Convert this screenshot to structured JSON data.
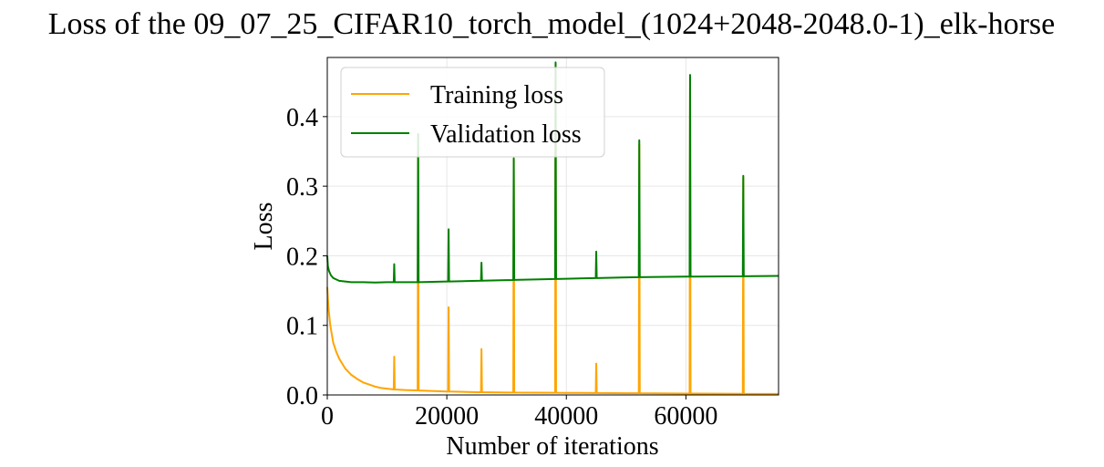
{
  "chart_data": {
    "type": "line",
    "title": "Loss of the 09_07_25_CIFAR10_torch_model_(1024+2048-2048.0-1)_elk-horse",
    "xlabel": "Number of iterations",
    "ylabel": "Loss",
    "xlim": [
      0,
      75500
    ],
    "ylim": [
      0,
      0.485
    ],
    "x_ticks": [
      0,
      20000,
      40000,
      60000
    ],
    "y_ticks": [
      0.0,
      0.1,
      0.2,
      0.3,
      0.4
    ],
    "x_tick_labels": [
      "0",
      "20000",
      "40000",
      "60000"
    ],
    "y_tick_labels": [
      "0.0",
      "0.1",
      "0.2",
      "0.3",
      "0.4"
    ],
    "grid": true,
    "legend_position": "upper-left",
    "series": [
      {
        "name": "Training loss",
        "color": "#FFA500",
        "baseline": [
          [
            0,
            0.155
          ],
          [
            200,
            0.125
          ],
          [
            500,
            0.1
          ],
          [
            1000,
            0.075
          ],
          [
            1500,
            0.062
          ],
          [
            2000,
            0.052
          ],
          [
            3000,
            0.038
          ],
          [
            4000,
            0.029
          ],
          [
            5000,
            0.023
          ],
          [
            6000,
            0.018
          ],
          [
            7000,
            0.015
          ],
          [
            8000,
            0.012
          ],
          [
            9000,
            0.01
          ],
          [
            10000,
            0.009
          ],
          [
            11000,
            0.008
          ],
          [
            13000,
            0.007
          ],
          [
            15000,
            0.0065
          ],
          [
            20000,
            0.005
          ],
          [
            25000,
            0.004
          ],
          [
            30000,
            0.0035
          ],
          [
            40000,
            0.003
          ],
          [
            50000,
            0.0025
          ],
          [
            60000,
            0.002
          ],
          [
            75500,
            0.0015
          ]
        ],
        "spikes": [
          [
            11200,
            0.055
          ],
          [
            15200,
            0.35
          ],
          [
            20300,
            0.126
          ],
          [
            25800,
            0.066
          ],
          [
            31200,
            0.34
          ],
          [
            38200,
            0.475
          ],
          [
            45000,
            0.045
          ],
          [
            52200,
            0.36
          ],
          [
            60700,
            0.455
          ],
          [
            69600,
            0.312
          ]
        ]
      },
      {
        "name": "Validation loss",
        "color": "#008000",
        "baseline": [
          [
            0,
            0.2
          ],
          [
            100,
            0.185
          ],
          [
            300,
            0.178
          ],
          [
            600,
            0.172
          ],
          [
            1000,
            0.168
          ],
          [
            1500,
            0.166
          ],
          [
            2000,
            0.164
          ],
          [
            3000,
            0.163
          ],
          [
            4000,
            0.162
          ],
          [
            5000,
            0.162
          ],
          [
            6000,
            0.162
          ],
          [
            8000,
            0.1615
          ],
          [
            10000,
            0.162
          ],
          [
            15000,
            0.162
          ],
          [
            20000,
            0.163
          ],
          [
            30000,
            0.165
          ],
          [
            40000,
            0.167
          ],
          [
            50000,
            0.169
          ],
          [
            60000,
            0.17
          ],
          [
            75500,
            0.171
          ]
        ],
        "spikes": [
          [
            11200,
            0.188
          ],
          [
            15200,
            0.375
          ],
          [
            20300,
            0.238
          ],
          [
            25800,
            0.19
          ],
          [
            31200,
            0.34
          ],
          [
            38200,
            0.478
          ],
          [
            45000,
            0.206
          ],
          [
            52200,
            0.366
          ],
          [
            60700,
            0.46
          ],
          [
            69600,
            0.315
          ]
        ]
      }
    ]
  }
}
